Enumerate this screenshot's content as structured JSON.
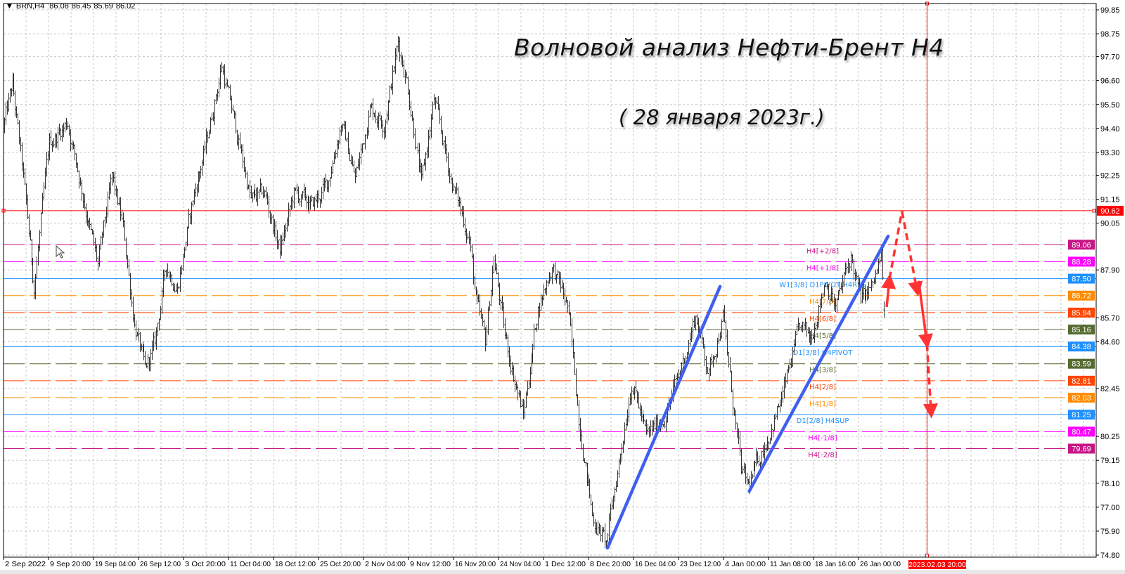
{
  "header": {
    "symbol": "BRN,H4",
    "open": "86.08",
    "high": "86.45",
    "low": "85.69",
    "close": "86.02",
    "menu_icon": "triangle-down-icon"
  },
  "title": "Волновой анализ Нефти-Брент H4",
  "subtitle": "( 28 января 2023г.)",
  "chart_data": {
    "type": "bar",
    "bar_style": "ohlc",
    "symbol": "BRN",
    "timeframe": "H4",
    "ylim": [
      74.8,
      99.85
    ],
    "grid": true,
    "y_ticks": [
      "99.85",
      "98.75",
      "97.70",
      "96.60",
      "95.50",
      "94.40",
      "93.30",
      "92.25",
      "91.15",
      "90.05",
      "87.90",
      "85.70",
      "84.60",
      "82.45",
      "80.25",
      "79.15",
      "78.10",
      "77.00",
      "75.90",
      "74.80"
    ],
    "x_ticks": [
      "2 Sep 2022",
      "9 Sep 20:00",
      "19 Sep 04:00",
      "26 Sep 12:00",
      "3 Oct 20:00",
      "11 Oct 04:00",
      "18 Oct 12:00",
      "25 Oct 20:00",
      "2 Nov 04:00",
      "9 Nov 12:00",
      "16 Nov 20:00",
      "24 Nov 04:00",
      "1 Dec 12:00",
      "8 Dec 20:00",
      "16 Dec 04:00",
      "23 Dec 12:00",
      "4 Jan 00:00",
      "11 Jan 08:00",
      "18 Jan 16:00",
      "26 Jan 00:00"
    ],
    "last_bar": {
      "open": 86.08,
      "high": 86.45,
      "low": 85.69,
      "close": 86.02
    },
    "price_path": [
      {
        "t": "2022-09-02 02:00",
        "p": 94.4
      },
      {
        "t": "2022-09-05 05:00",
        "p": 96.4
      },
      {
        "t": "2022-09-06 08:00",
        "p": 92.7
      },
      {
        "t": "2022-09-07 20:00",
        "p": 87.1
      },
      {
        "t": "2022-09-09 16:00",
        "p": 93.7
      },
      {
        "t": "2022-09-13 20:00",
        "p": 94.7
      },
      {
        "t": "2022-09-16 04:00",
        "p": 90.4
      },
      {
        "t": "2022-09-19 12:00",
        "p": 88.1
      },
      {
        "t": "2022-09-21 04:00",
        "p": 92.1
      },
      {
        "t": "2022-09-22 12:00",
        "p": 89.8
      },
      {
        "t": "2022-09-23 20:00",
        "p": 85.5
      },
      {
        "t": "2022-09-27 04:00",
        "p": 83.2
      },
      {
        "t": "2022-09-28 08:00",
        "p": 84.5
      },
      {
        "t": "2022-09-29 16:00",
        "p": 88.1
      },
      {
        "t": "2022-10-03 00:00",
        "p": 87.1
      },
      {
        "t": "2022-10-04 20:00",
        "p": 91.1
      },
      {
        "t": "2022-10-06 12:00",
        "p": 93.7
      },
      {
        "t": "2022-10-10 08:00",
        "p": 97.3
      },
      {
        "t": "2022-10-11 16:00",
        "p": 95.0
      },
      {
        "t": "2022-10-13 20:00",
        "p": 91.1
      },
      {
        "t": "2022-10-17 12:00",
        "p": 91.4
      },
      {
        "t": "2022-10-19 08:00",
        "p": 88.8
      },
      {
        "t": "2022-10-21 00:00",
        "p": 91.4
      },
      {
        "t": "2022-10-25 04:00",
        "p": 90.8
      },
      {
        "t": "2022-10-27 00:00",
        "p": 91.8
      },
      {
        "t": "2022-10-28 16:00",
        "p": 94.7
      },
      {
        "t": "2022-11-01 08:00",
        "p": 92.1
      },
      {
        "t": "2022-11-03 04:00",
        "p": 95.4
      },
      {
        "t": "2022-11-04 20:00",
        "p": 94.7
      },
      {
        "t": "2022-11-08 12:00",
        "p": 98.3
      },
      {
        "t": "2022-11-09 12:00",
        "p": 96.7
      },
      {
        "t": "2022-11-11 08:00",
        "p": 91.8
      },
      {
        "t": "2022-11-14 20:00",
        "p": 95.7
      },
      {
        "t": "2022-11-16 20:00",
        "p": 92.1
      },
      {
        "t": "2022-11-21 00:00",
        "p": 89.4
      },
      {
        "t": "2022-11-21 20:00",
        "p": 86.5
      },
      {
        "t": "2022-11-23 00:00",
        "p": 84.5
      },
      {
        "t": "2022-11-24 00:00",
        "p": 88.5
      },
      {
        "t": "2022-11-25 08:00",
        "p": 84.8
      },
      {
        "t": "2022-11-29 12:00",
        "p": 81.2
      },
      {
        "t": "2022-12-01 08:00",
        "p": 86.2
      },
      {
        "t": "2022-12-05 00:00",
        "p": 88.1
      },
      {
        "t": "2022-12-06 20:00",
        "p": 86.2
      },
      {
        "t": "2022-12-08 04:00",
        "p": 81.2
      },
      {
        "t": "2022-12-09 20:00",
        "p": 76.6
      },
      {
        "t": "2022-12-13 12:00",
        "p": 75.3
      },
      {
        "t": "2022-12-15 08:00",
        "p": 79.9
      },
      {
        "t": "2022-12-16 12:00",
        "p": 82.9
      },
      {
        "t": "2022-12-20 08:00",
        "p": 80.2
      },
      {
        "t": "2022-12-22 12:00",
        "p": 81.2
      },
      {
        "t": "2022-12-26 08:00",
        "p": 83.2
      },
      {
        "t": "2022-12-28 04:00",
        "p": 85.8
      },
      {
        "t": "2022-12-29 20:00",
        "p": 83.2
      },
      {
        "t": "2023-01-02 12:00",
        "p": 85.8
      },
      {
        "t": "2023-01-03 08:00",
        "p": 82.9
      },
      {
        "t": "2023-01-04 16:00",
        "p": 78.6
      },
      {
        "t": "2023-01-05 12:00",
        "p": 77.9
      },
      {
        "t": "2023-01-09 20:00",
        "p": 80.2
      },
      {
        "t": "2023-01-11 12:00",
        "p": 81.9
      },
      {
        "t": "2023-01-13 16:00",
        "p": 85.2
      },
      {
        "t": "2023-01-17 00:00",
        "p": 84.8
      },
      {
        "t": "2023-01-18 20:00",
        "p": 87.5
      },
      {
        "t": "2023-01-20 00:00",
        "p": 86.2
      },
      {
        "t": "2023-01-23 20:00",
        "p": 88.5
      },
      {
        "t": "2023-01-25 00:00",
        "p": 86.5
      },
      {
        "t": "2023-01-26 12:00",
        "p": 87.1
      },
      {
        "t": "2023-01-27 12:00",
        "p": 88.5
      },
      {
        "t": "2023-01-27 20:00",
        "p": 86.02
      }
    ],
    "hline": {
      "price": 90.62,
      "label": "90.62",
      "color": "#ff0000"
    },
    "vline": {
      "t": "2023-02-03 20:00",
      "label": "2023.02.03 20:00",
      "color": "#ff0000"
    },
    "bid_line": {
      "price": 86.02,
      "color": "#c0c0c0"
    },
    "levels": [
      {
        "price": 89.06,
        "tag": "89.06",
        "label": "H4[+2/8]",
        "color": "#c71585",
        "style": "dashed"
      },
      {
        "price": 88.28,
        "tag": "88.28",
        "label": "H4[+1/8]",
        "color": "#ff00ff",
        "style": "dashed"
      },
      {
        "price": 87.5,
        "tag": "87.50",
        "label": "W1[3/8] D1PIVOT H4RES",
        "color": "#1e90ff",
        "style": "solid"
      },
      {
        "price": 86.72,
        "tag": "86.72",
        "label": "H4[7/8]",
        "color": "#ff8c00",
        "style": "dashed"
      },
      {
        "price": 85.94,
        "tag": "85.94",
        "label": "H4[6/8]",
        "color": "#ff4500",
        "style": "dashed"
      },
      {
        "price": 85.16,
        "tag": "85.16",
        "label": "H4[5/8]",
        "color": "#556b2f",
        "style": "dashed"
      },
      {
        "price": 84.38,
        "tag": "84.38",
        "label": "D1[3/8] H4PIVOT",
        "color": "#1e90ff",
        "style": "solid"
      },
      {
        "price": 83.59,
        "tag": "83.59",
        "label": "H4[3/8]",
        "color": "#556b2f",
        "style": "dashed"
      },
      {
        "price": 82.81,
        "tag": "82.81",
        "label": "H4[2/8]",
        "color": "#ff4500",
        "style": "dashed"
      },
      {
        "price": 82.03,
        "tag": "82.03",
        "label": "H4[1/8]",
        "color": "#ff8c00",
        "style": "dashed"
      },
      {
        "price": 81.25,
        "tag": "81.25",
        "label": "D1[2/8] H4SUP",
        "color": "#1e90ff",
        "style": "solid"
      },
      {
        "price": 80.47,
        "tag": "80.47",
        "label": "H4[-1/8]",
        "color": "#ff00ff",
        "style": "dashed"
      },
      {
        "price": 79.69,
        "tag": "79.69",
        "label": "H4[-2/8]",
        "color": "#c71585",
        "style": "dashed"
      }
    ],
    "trendlines": [
      {
        "color": "#3f5ff0",
        "from": {
          "t": "2022-12-13 12:00",
          "p": 75.13
        },
        "to": {
          "t": "2023-01-02 00:00",
          "p": 87.14
        }
      },
      {
        "color": "#3f5ff0",
        "from": {
          "t": "2023-01-05 12:00",
          "p": 77.73
        },
        "to": {
          "t": "2023-01-30 04:00",
          "p": 89.45
        }
      }
    ],
    "forecast_arrows": [
      {
        "color": "#ff3333",
        "style": "solid",
        "head": true,
        "from": {
          "t": "2023-01-30 00:00",
          "p": 86.2
        },
        "to": {
          "t": "2023-01-30 08:00",
          "p": 87.5
        }
      },
      {
        "color": "#ff3333",
        "style": "dashed",
        "head": false,
        "from": {
          "t": "2023-01-30 08:00",
          "p": 87.5
        },
        "to": {
          "t": "2023-01-31 20:00",
          "p": 90.6
        }
      },
      {
        "color": "#ff3333",
        "style": "dashed",
        "head": true,
        "from": {
          "t": "2023-01-31 20:00",
          "p": 90.6
        },
        "to": {
          "t": "2023-02-02 16:00",
          "p": 86.9
        }
      },
      {
        "color": "#ff3333",
        "style": "solid",
        "head": true,
        "from": {
          "t": "2023-02-02 20:00",
          "p": 87.4
        },
        "to": {
          "t": "2023-02-03 20:00",
          "p": 84.5
        }
      },
      {
        "color": "#ff3333",
        "style": "dashed",
        "head": true,
        "from": {
          "t": "2023-02-03 20:00",
          "p": 84.5
        },
        "to": {
          "t": "2023-02-06 08:00",
          "p": 81.3
        }
      }
    ]
  }
}
